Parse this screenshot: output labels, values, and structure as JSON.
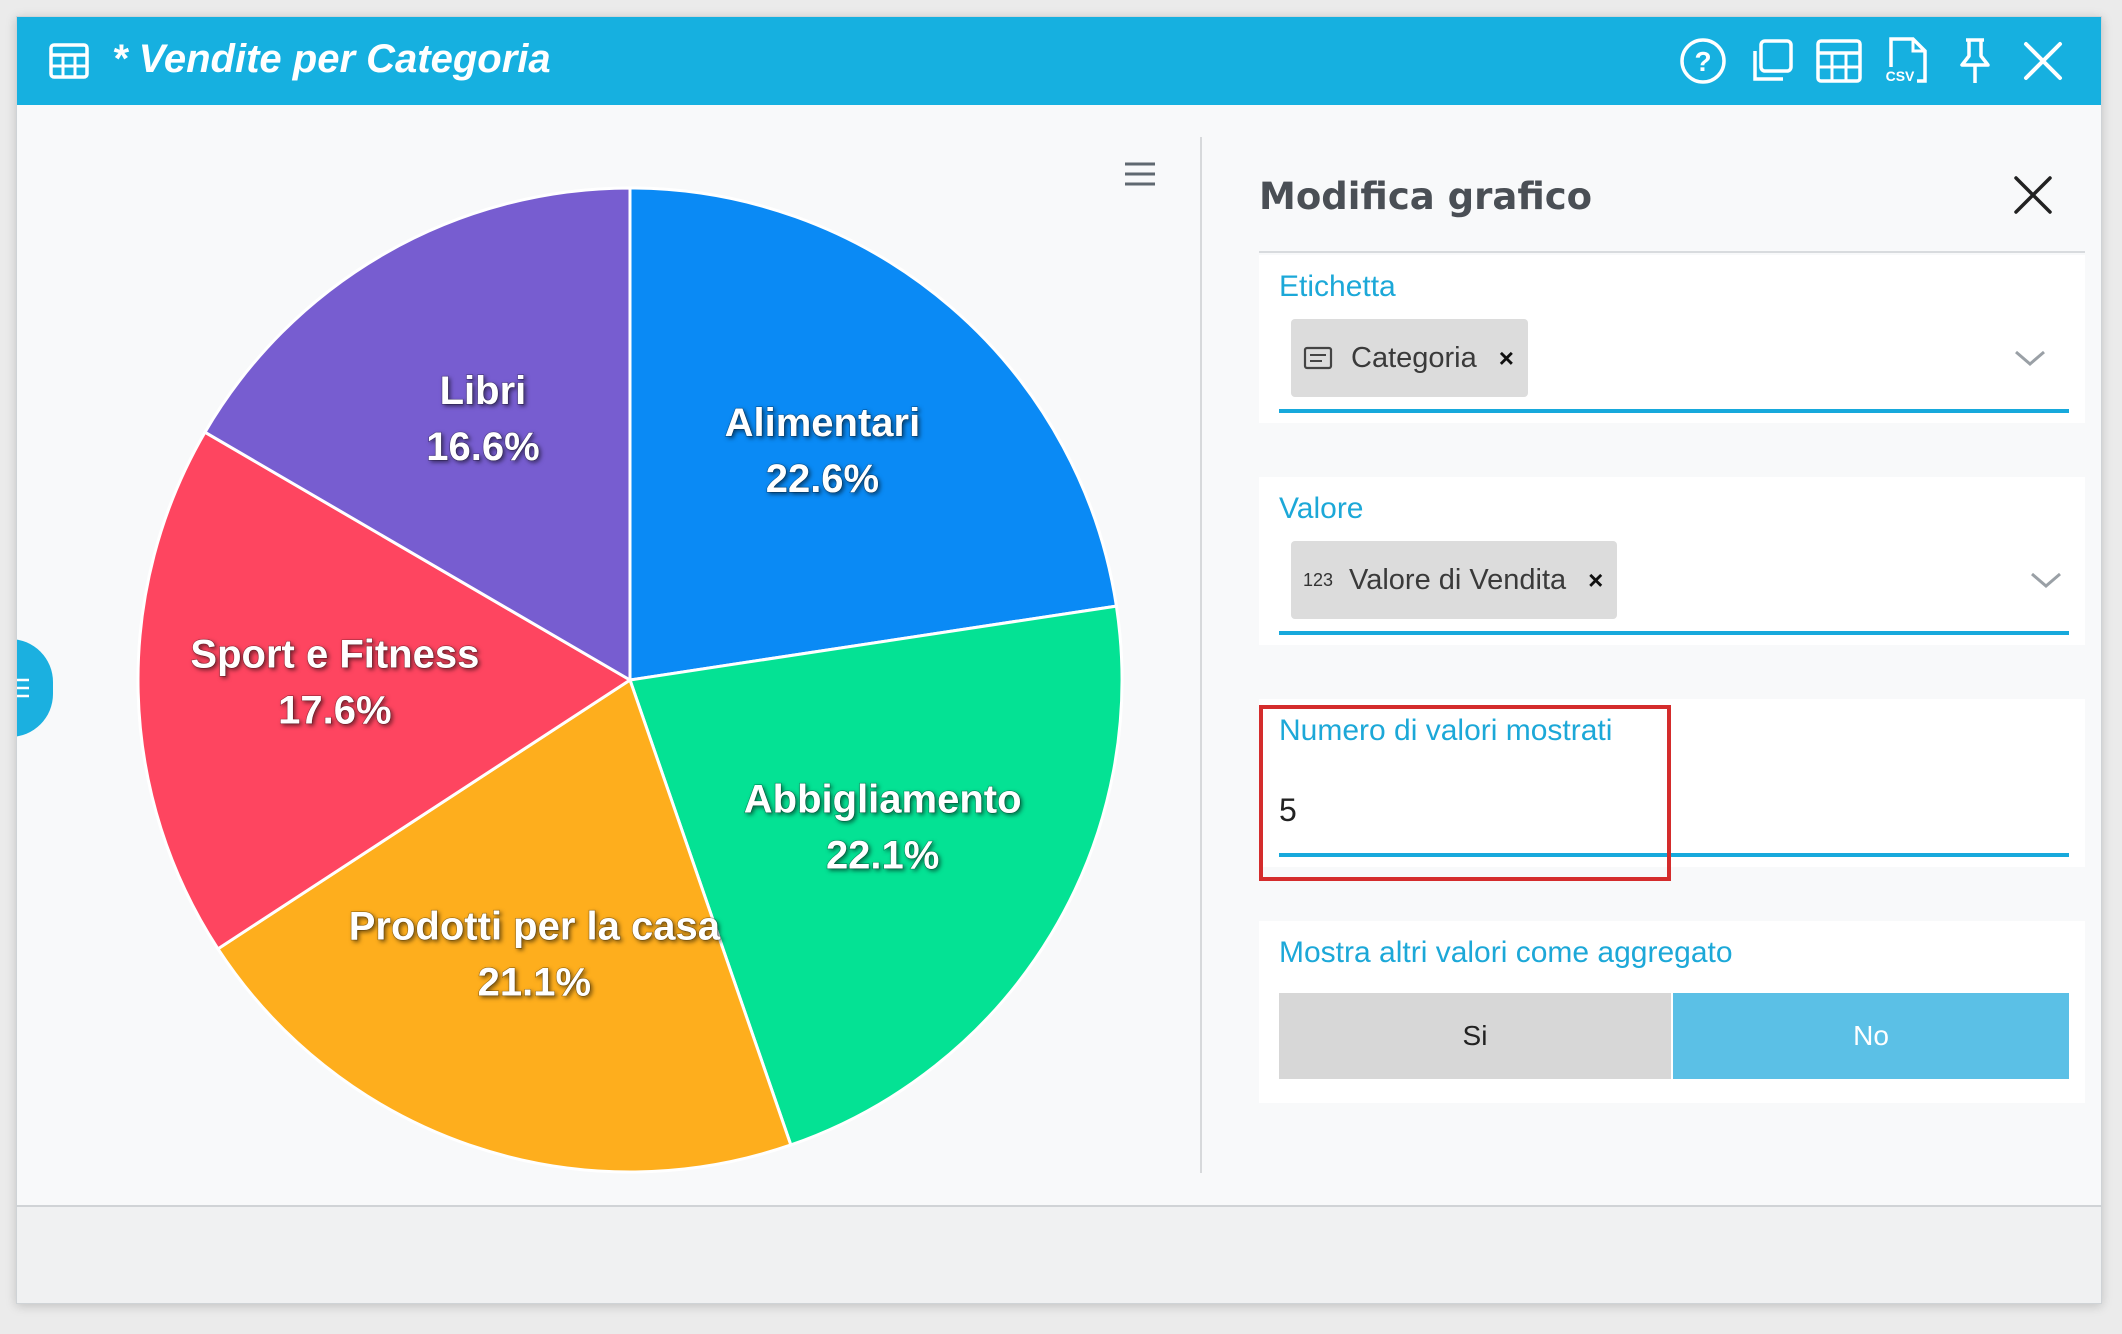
{
  "window": {
    "title": "* Vendite per Categoria",
    "accent_color": "#16b0e0",
    "toolbar": {
      "help_icon": "help-circle-icon",
      "duplicate_icon": "duplicate-icon",
      "table_icon": "table-grid-icon",
      "csv_icon": "csv-file-icon",
      "csv_label": "CSV",
      "pin_icon": "pin-icon",
      "close_icon": "close-icon"
    }
  },
  "chart_data": {
    "type": "pie",
    "categories": [
      "Alimentari",
      "Abbigliamento",
      "Prodotti per la casa",
      "Sport e Fitness",
      "Libri"
    ],
    "values": [
      22.6,
      22.1,
      21.1,
      17.6,
      16.6
    ],
    "labels": [
      "22.6%",
      "22.1%",
      "21.1%",
      "17.6%",
      "16.6%"
    ],
    "colors": [
      "#0a8af5",
      "#04e294",
      "#feae1d",
      "#fe4560",
      "#775dd0"
    ]
  },
  "panel": {
    "title": "Modifica grafico",
    "etichetta": {
      "label": "Etichetta",
      "chip": "Categoria",
      "chip_icon": "text-field-icon"
    },
    "valore": {
      "label": "Valore",
      "chip": "Valore di Vendita",
      "chip_icon_text": "123"
    },
    "numero": {
      "label": "Numero di valori mostrati",
      "value": "5"
    },
    "aggregato": {
      "label": "Mostra altri valori come aggregato",
      "options": [
        "Si",
        "No"
      ],
      "selected": "No"
    }
  }
}
